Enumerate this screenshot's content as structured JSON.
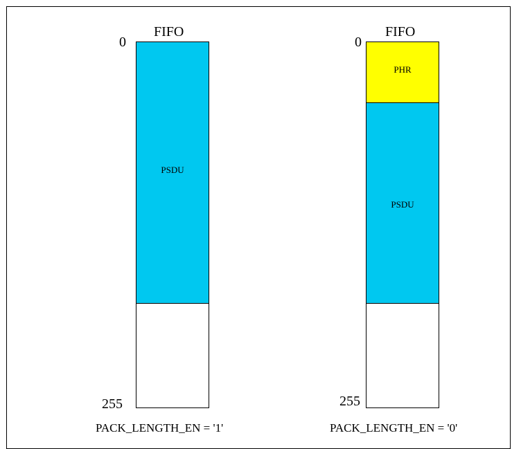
{
  "colors": {
    "psdu": "#00c8f0",
    "phr": "#ffff00",
    "empty": "#ffffff"
  },
  "left": {
    "title": "FIFO",
    "index_top": "0",
    "index_bottom": "255",
    "segments": [
      {
        "label": "PSDU",
        "color": "psdu"
      },
      {
        "label": "",
        "color": "empty"
      }
    ],
    "caption": "PACK_LENGTH_EN = '1'"
  },
  "right": {
    "title": "FIFO",
    "index_top": "0",
    "index_bottom": "255",
    "segments": [
      {
        "label": "PHR",
        "color": "phr"
      },
      {
        "label": "PSDU",
        "color": "psdu"
      },
      {
        "label": "",
        "color": "empty"
      }
    ],
    "caption": "PACK_LENGTH_EN = '0'"
  }
}
